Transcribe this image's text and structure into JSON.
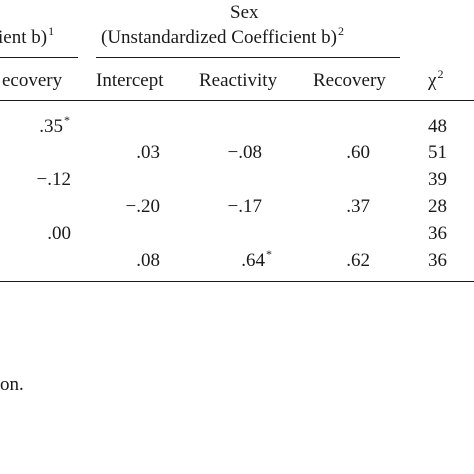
{
  "header": {
    "left_group_tail": "ient b)",
    "left_group_sup": "1",
    "sex_title": "Sex",
    "sex_subtitle": "(Unstandardized Coefficient b)",
    "sex_subtitle_sup": "2"
  },
  "columns": {
    "left_recovery": "ecovery",
    "intercept": "Intercept",
    "reactivity": "Reactivity",
    "recovery": "Recovery",
    "chi_symbol": "χ",
    "chi_sup": "2"
  },
  "rows": [
    {
      "left": ".35",
      "left_sup": "*",
      "intercept": "",
      "reactivity": "",
      "reactivity_sup": "",
      "recovery": "",
      "chi": "48"
    },
    {
      "left": "",
      "left_sup": "",
      "intercept": ".03",
      "reactivity": "−.08",
      "reactivity_sup": "",
      "recovery": ".60",
      "chi": "51"
    },
    {
      "left": "−.12",
      "left_sup": "",
      "intercept": "",
      "reactivity": "",
      "reactivity_sup": "",
      "recovery": "",
      "chi": "39"
    },
    {
      "left": "",
      "left_sup": "",
      "intercept": "−.20",
      "reactivity": "−.17",
      "reactivity_sup": "",
      "recovery": ".37",
      "chi": "28"
    },
    {
      "left": ".00",
      "left_sup": "",
      "intercept": "",
      "reactivity": "",
      "reactivity_sup": "",
      "recovery": "",
      "chi": "36"
    },
    {
      "left": "",
      "left_sup": "",
      "intercept": ".08",
      "reactivity": ".64",
      "reactivity_sup": "*",
      "recovery": ".62",
      "chi": "36"
    }
  ],
  "footnote_fragment": "on."
}
